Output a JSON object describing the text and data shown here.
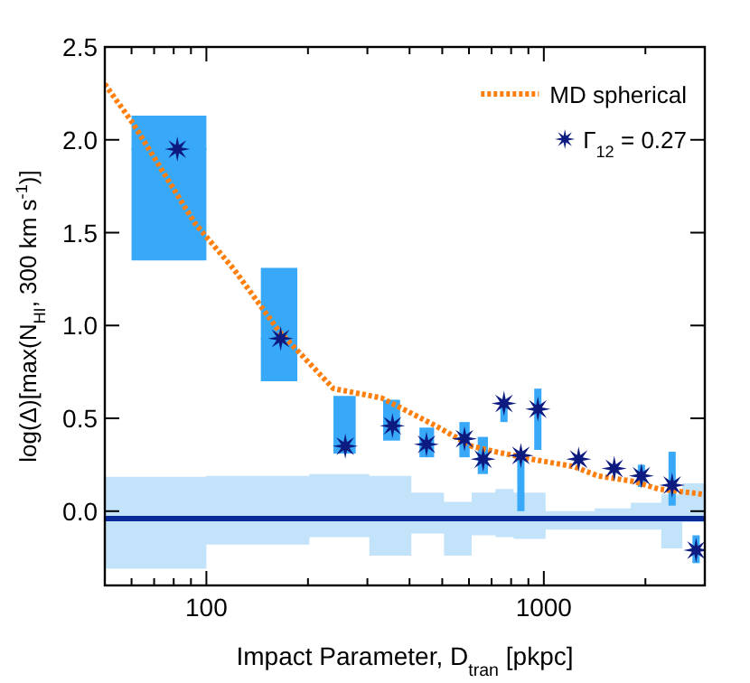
{
  "chart_data": {
    "type": "scatter",
    "xlabel": "Impact Parameter, D$_{tran}$ [pkpc]",
    "ylabel": "log(Δ)[max(N$_{HI}$, 300 km s$^{-1}$)]",
    "log": "x",
    "xlim": [
      50,
      3000
    ],
    "ylim": [
      -0.4,
      2.5
    ],
    "xticks": [
      {
        "value": 60,
        "label": null
      },
      {
        "value": 70,
        "label": null
      },
      {
        "value": 80,
        "label": null
      },
      {
        "value": 90,
        "label": null
      },
      100,
      {
        "value": 200,
        "label": null
      },
      {
        "value": 300,
        "label": null
      },
      {
        "value": 400,
        "label": null
      },
      {
        "value": 500,
        "label": null
      },
      {
        "value": 600,
        "label": null
      },
      {
        "value": 700,
        "label": null
      },
      {
        "value": 800,
        "label": null
      },
      {
        "value": 900,
        "label": null
      },
      1000,
      {
        "value": 2000,
        "label": null
      },
      {
        "value": 3000,
        "label": null
      }
    ],
    "yticks": [
      {
        "value": 0,
        "label": "0.0"
      },
      {
        "value": 0.5,
        "label": "0.5"
      },
      {
        "value": 1,
        "label": "1.0"
      },
      {
        "value": 1.5,
        "label": "1.5"
      },
      {
        "value": 2,
        "label": "2.0"
      },
      {
        "value": 2.5,
        "label": "2.5"
      }
    ],
    "legend": "top right",
    "grid": false,
    "series": [
      {
        "type": "step",
        "color": "#0a2a9a",
        "x": [
          50,
          100,
          202,
          304,
          405,
          506,
          611,
          719,
          814,
          1012,
          1415,
          1810,
          2228,
          2573,
          3000
        ],
        "values": [
          -0.04,
          -0.04,
          -0.04,
          -0.04,
          -0.04,
          -0.04,
          -0.04,
          -0.04,
          -0.04,
          -0.04,
          -0.04,
          -0.04,
          -0.04,
          -0.04,
          -0.04
        ],
        "lower": [
          -0.31,
          -0.18,
          -0.14,
          -0.24,
          -0.12,
          -0.24,
          -0.13,
          -0.14,
          -0.15,
          -0.1,
          -0.1,
          -0.1,
          -0.2,
          -0.06,
          -0.06
        ],
        "upper": [
          0.185,
          0.19,
          0.2,
          0.19,
          0.1,
          0.05,
          0.1,
          0.12,
          0.1,
          0.0,
          0.015,
          0.045,
          0.09,
          0.15,
          0.15
        ]
      },
      {
        "type": "line",
        "name": "MD spherical",
        "color": "#ff7f0e",
        "line_style": "dotted",
        "x": [
          50,
          60.5,
          92.5,
          121,
          164,
          238,
          330,
          478,
          611,
          719,
          921,
          1227,
          1445,
          1850,
          2181,
          3000
        ],
        "values": [
          2.3,
          2.09,
          1.55,
          1.3,
          0.97,
          0.66,
          0.61,
          0.46,
          0.35,
          0.32,
          0.28,
          0.24,
          0.19,
          0.16,
          0.12,
          0.09
        ]
      },
      {
        "name": "Γ$_{12}$ = 0.27",
        "color": "#0d1b80",
        "marker": "star",
        "x": [
          82,
          166,
          258,
          356,
          449,
          582,
          661,
          762,
          855,
          960,
          1268,
          1617,
          1946,
          2400,
          2826
        ],
        "values": [
          1.95,
          0.93,
          0.35,
          0.46,
          0.36,
          0.39,
          0.28,
          0.58,
          0.3,
          0.55,
          0.28,
          0.23,
          0.19,
          0.14,
          -0.21
        ],
        "errors": [
          [
            1.35,
            2.13
          ],
          [
            0.7,
            1.31
          ],
          [
            0.31,
            0.62
          ],
          [
            0.38,
            0.6
          ],
          [
            0.29,
            0.45
          ],
          [
            0.29,
            0.48
          ],
          [
            0.2,
            0.4
          ],
          [
            0.48,
            0.6
          ],
          [
            0.0,
            0.32
          ],
          [
            0.33,
            0.66
          ],
          null,
          null,
          [
            0.13,
            0.25
          ],
          [
            0.03,
            0.32
          ],
          [
            -0.28,
            -0.13
          ]
        ],
        "xerrors": [
          [
            60,
            100
          ],
          [
            145,
            186
          ],
          [
            238,
            277
          ],
          [
            334,
            375
          ],
          [
            428,
            473
          ],
          [
            562,
            603
          ],
          [
            637,
            683
          ],
          null,
          null,
          null,
          null,
          null,
          null,
          null,
          null
        ]
      }
    ]
  }
}
